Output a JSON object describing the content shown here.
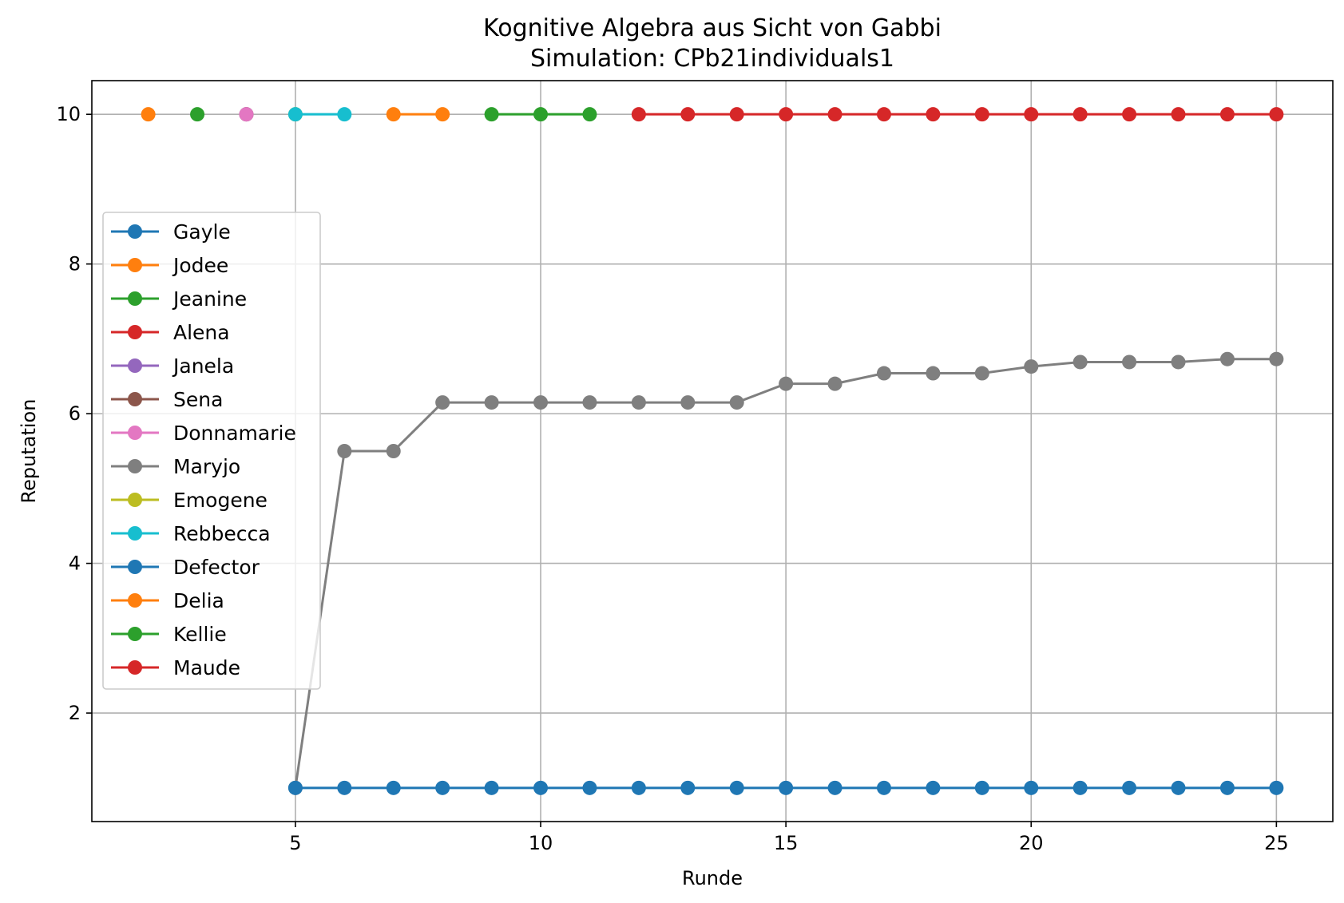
{
  "chart_data": {
    "type": "line",
    "title": "Kognitive Algebra aus Sicht von Gabbi",
    "subtitle": "Simulation: CPb21individuals1",
    "xlabel": "Runde",
    "ylabel": "Reputation",
    "xlim": [
      0.85,
      26.15
    ],
    "ylim": [
      0.55,
      10.45
    ],
    "xticks": [
      5,
      10,
      15,
      20,
      25
    ],
    "yticks": [
      2,
      4,
      6,
      8,
      10
    ],
    "grid": true,
    "legend_position": "center-left",
    "series": [
      {
        "name": "Gayle",
        "color": "#1f77b4",
        "x": [],
        "y": []
      },
      {
        "name": "Jodee",
        "color": "#ff7f0e",
        "x": [
          2
        ],
        "y": [
          10
        ]
      },
      {
        "name": "Jeanine",
        "color": "#2ca02c",
        "x": [
          3
        ],
        "y": [
          10
        ]
      },
      {
        "name": "Alena",
        "color": "#d62728",
        "x": [],
        "y": []
      },
      {
        "name": "Janela",
        "color": "#9467bd",
        "x": [
          4
        ],
        "y": [
          10
        ]
      },
      {
        "name": "Sena",
        "color": "#8c564b",
        "x": [
          4
        ],
        "y": [
          10
        ]
      },
      {
        "name": "Donnamarie",
        "color": "#e377c2",
        "x": [
          4
        ],
        "y": [
          10
        ]
      },
      {
        "name": "Maryjo",
        "color": "#7f7f7f",
        "x": [
          5,
          6,
          7,
          8,
          9,
          10,
          11,
          12,
          13,
          14,
          15,
          16,
          17,
          18,
          19,
          20,
          21,
          22,
          23,
          24,
          25
        ],
        "y": [
          1,
          5.5,
          5.5,
          6.15,
          6.15,
          6.15,
          6.15,
          6.15,
          6.15,
          6.15,
          6.4,
          6.4,
          6.54,
          6.54,
          6.54,
          6.63,
          6.69,
          6.69,
          6.69,
          6.73,
          6.73
        ]
      },
      {
        "name": "Emogene",
        "color": "#bcbd22",
        "x": [
          5
        ],
        "y": [
          10
        ]
      },
      {
        "name": "Rebbecca",
        "color": "#17becf",
        "x": [
          5,
          6
        ],
        "y": [
          10,
          10
        ]
      },
      {
        "name": "Defector",
        "color": "#1f77b4",
        "x": [
          5,
          6,
          7,
          8,
          9,
          10,
          11,
          12,
          13,
          14,
          15,
          16,
          17,
          18,
          19,
          20,
          21,
          22,
          23,
          24,
          25
        ],
        "y": [
          1,
          1,
          1,
          1,
          1,
          1,
          1,
          1,
          1,
          1,
          1,
          1,
          1,
          1,
          1,
          1,
          1,
          1,
          1,
          1,
          1
        ]
      },
      {
        "name": "Delia",
        "color": "#ff7f0e",
        "x": [
          7,
          8
        ],
        "y": [
          10,
          10
        ]
      },
      {
        "name": "Kellie",
        "color": "#2ca02c",
        "x": [
          9,
          10,
          11
        ],
        "y": [
          10,
          10,
          10
        ]
      },
      {
        "name": "Maude",
        "color": "#d62728",
        "x": [
          12,
          13,
          14,
          15,
          16,
          17,
          18,
          19,
          20,
          21,
          22,
          23,
          24,
          25
        ],
        "y": [
          10,
          10,
          10,
          10,
          10,
          10,
          10,
          10,
          10,
          10,
          10,
          10,
          10,
          10
        ]
      }
    ]
  }
}
